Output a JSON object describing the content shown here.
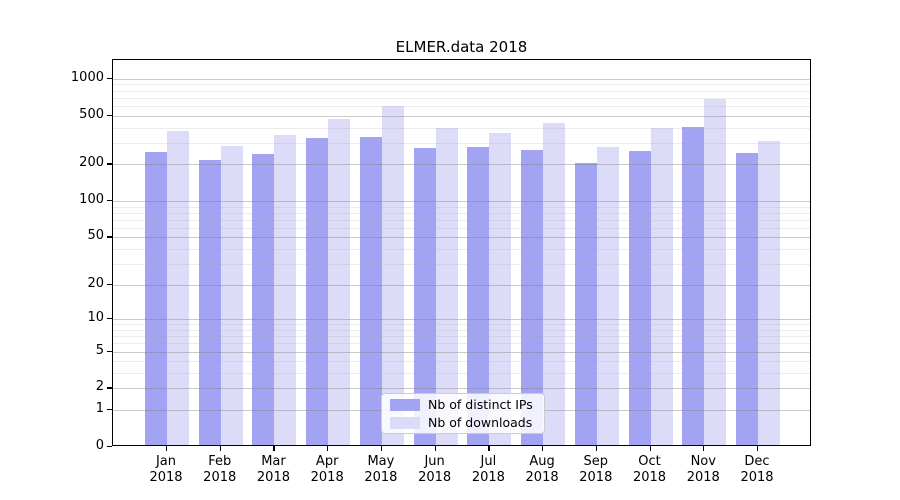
{
  "title": "ELMER.data 2018",
  "colors": {
    "bar_distinct_ips": "#a3a3f3",
    "bar_downloads": "#dcdcf9",
    "grid_major": "#808080",
    "grid_minor": "#aaaaaa",
    "axis": "#000000",
    "legend_border": "#cccccc"
  },
  "legend": {
    "items": [
      {
        "label": "Nb of distinct IPs",
        "color": "#a3a3f3"
      },
      {
        "label": "Nb of downloads",
        "color": "#dcdcf9"
      }
    ]
  },
  "chart_data": {
    "type": "bar",
    "title": "ELMER.data 2018",
    "yscale": "log1p",
    "categories": [
      "Jan",
      "Feb",
      "Mar",
      "Apr",
      "May",
      "Jun",
      "Jul",
      "Aug",
      "Sep",
      "Oct",
      "Nov",
      "Dec"
    ],
    "category_year": "2018",
    "series": [
      {
        "name": "Nb of distinct IPs",
        "color": "#a3a3f3",
        "values": [
          243,
          210,
          233,
          315,
          325,
          261,
          266,
          254,
          197,
          249,
          392,
          237
        ]
      },
      {
        "name": "Nb of downloads",
        "color": "#dcdcf9",
        "values": [
          361,
          271,
          335,
          453,
          578,
          380,
          346,
          422,
          266,
          380,
          663,
          298
        ]
      }
    ],
    "yticks": [
      0,
      1,
      2,
      5,
      10,
      20,
      50,
      100,
      200,
      500,
      1000
    ],
    "yminorticks": [
      3,
      4,
      6,
      7,
      8,
      9,
      30,
      40,
      60,
      70,
      80,
      90,
      300,
      400,
      600,
      700,
      800,
      900
    ],
    "ylim": [
      0,
      1400
    ],
    "xlabel": "",
    "ylabel": "",
    "grid": true,
    "grid_above_bars": true,
    "legend_position": "lower center"
  }
}
